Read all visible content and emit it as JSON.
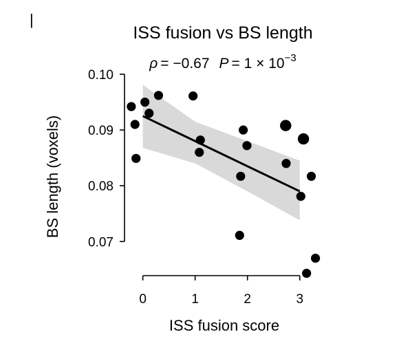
{
  "chart_data": {
    "type": "scatter",
    "title": "ISS fusion vs BS length",
    "stats": {
      "rho_symbol": "ρ",
      "rho_value": "= −0.67",
      "p_symbol": "P",
      "p_value": "= 1 × 10",
      "p_exponent": "−3"
    },
    "panel_marker": "|",
    "xlabel": "ISS fusion score",
    "ylabel": "BS length (voxels)",
    "xlim": [
      -0.35,
      3.45
    ],
    "ylim": [
      0.064,
      0.1
    ],
    "xticks": [
      0,
      1,
      2,
      3
    ],
    "xtick_labels": [
      "0",
      "1",
      "2",
      "3"
    ],
    "yticks": [
      0.07,
      0.08,
      0.09,
      0.1
    ],
    "ytick_labels": [
      "0.07",
      "0.08",
      "0.09",
      "0.10"
    ],
    "grid": false,
    "legend": false,
    "colors": {
      "points": "#000000",
      "fit_line": "#000000",
      "confidence_band": "#d9d9d9"
    },
    "points": [
      {
        "x": -0.22,
        "y": 0.0942,
        "big": false
      },
      {
        "x": -0.15,
        "y": 0.091,
        "big": false
      },
      {
        "x": -0.13,
        "y": 0.0849,
        "big": false
      },
      {
        "x": 0.04,
        "y": 0.095,
        "big": false
      },
      {
        "x": 0.12,
        "y": 0.093,
        "big": false
      },
      {
        "x": 0.3,
        "y": 0.0962,
        "big": false
      },
      {
        "x": 0.96,
        "y": 0.0961,
        "big": false
      },
      {
        "x": 1.08,
        "y": 0.086,
        "big": false
      },
      {
        "x": 1.1,
        "y": 0.0882,
        "big": false
      },
      {
        "x": 1.85,
        "y": 0.0711,
        "big": false
      },
      {
        "x": 1.87,
        "y": 0.0817,
        "big": false
      },
      {
        "x": 1.92,
        "y": 0.09,
        "big": false
      },
      {
        "x": 1.99,
        "y": 0.0872,
        "big": false
      },
      {
        "x": 2.73,
        "y": 0.0908,
        "big": true
      },
      {
        "x": 2.74,
        "y": 0.084,
        "big": false
      },
      {
        "x": 3.02,
        "y": 0.0781,
        "big": false
      },
      {
        "x": 3.07,
        "y": 0.0884,
        "big": true
      },
      {
        "x": 3.13,
        "y": 0.0643,
        "big": false
      },
      {
        "x": 3.22,
        "y": 0.0817,
        "big": false
      },
      {
        "x": 3.3,
        "y": 0.067,
        "big": false
      }
    ],
    "fit": {
      "x": [
        0.0,
        3.0
      ],
      "y": [
        0.0925,
        0.079
      ]
    },
    "confidence_band": {
      "x": [
        0.0,
        1.0,
        2.0,
        3.0
      ],
      "upper": [
        0.0981,
        0.0915,
        0.088,
        0.0845
      ],
      "lower": [
        0.0868,
        0.084,
        0.079,
        0.0738
      ]
    }
  }
}
